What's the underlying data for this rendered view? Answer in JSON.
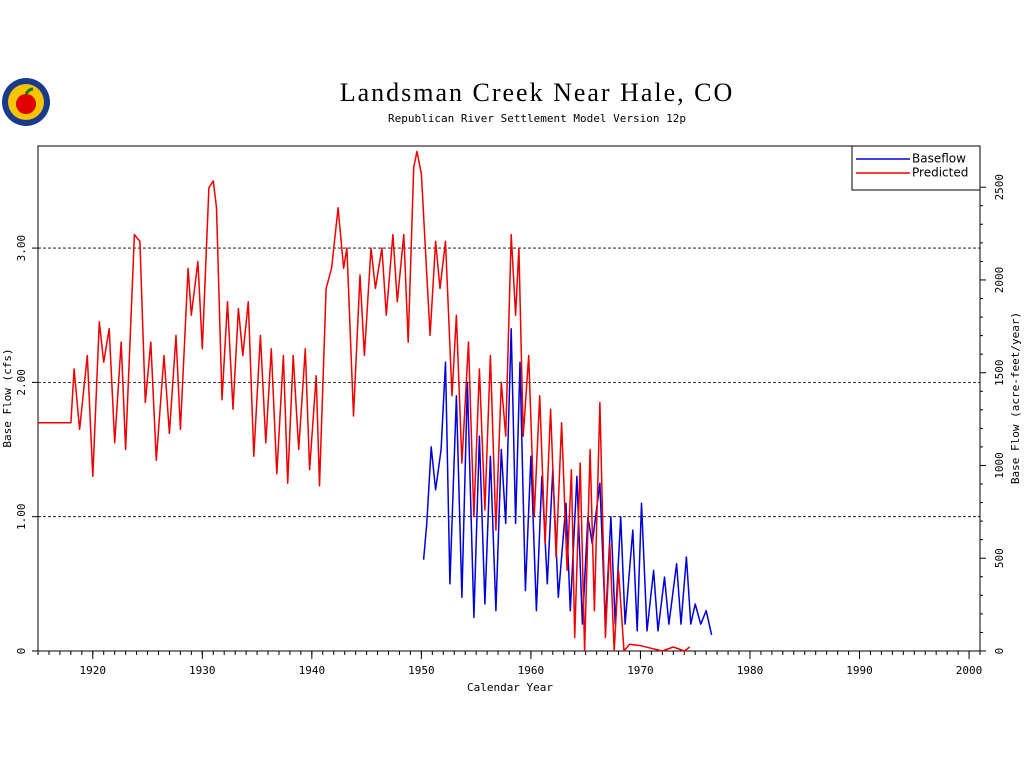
{
  "chart_data": {
    "type": "line",
    "title": "Landsman Creek Near Hale, CO",
    "subtitle": "Republican River Settlement Model Version 12p",
    "x_label": "Calendar Year",
    "y_label": "Base Flow (cfs)",
    "y2_label": "Base Flow (acre-feet/year)",
    "xlim": [
      1915,
      2001
    ],
    "xticks": [
      1920,
      1930,
      1940,
      1950,
      1960,
      1970,
      1980,
      1990,
      2000
    ],
    "ylim": [
      0,
      3.76
    ],
    "yticks": [
      0,
      {
        "value": 1,
        "label": "1.00"
      },
      {
        "value": 2,
        "label": "2.00"
      },
      {
        "value": 3,
        "label": "3.00"
      }
    ],
    "y2lim": [
      0,
      2722
    ],
    "y2ticks": [
      0,
      500,
      1000,
      1500,
      2000,
      2500
    ],
    "grid": true,
    "legend": "upper right",
    "series": [
      {
        "name": "Baseflow",
        "color": "#0000dd",
        "x": [
          1950.2,
          1950.5,
          1950.9,
          1951.3,
          1951.8,
          1952.2,
          1952.6,
          1953.2,
          1953.7,
          1954.2,
          1954.8,
          1955.3,
          1955.8,
          1956.3,
          1956.8,
          1957.3,
          1957.7,
          1958.2,
          1958.6,
          1959.0,
          1959.5,
          1960.0,
          1960.5,
          1961.0,
          1961.5,
          1962.0,
          1962.5,
          1963.2,
          1963.6,
          1964.2,
          1964.7,
          1965.2,
          1965.6,
          1966.3,
          1966.8,
          1967.3,
          1967.7,
          1968.2,
          1968.6,
          1969.3,
          1969.7,
          1970.1,
          1970.6,
          1971.2,
          1971.6,
          1972.2,
          1972.6,
          1973.3,
          1973.7,
          1974.2,
          1974.6,
          1975,
          1975.5,
          1976,
          1976.5
        ],
        "values": [
          0.68,
          0.95,
          1.52,
          1.2,
          1.5,
          2.15,
          0.5,
          1.9,
          0.4,
          2.0,
          0.25,
          1.6,
          0.35,
          1.45,
          0.3,
          1.5,
          0.95,
          2.4,
          0.95,
          2.15,
          0.45,
          1.45,
          0.3,
          1.3,
          0.5,
          1.35,
          0.4,
          1.1,
          0.3,
          1.3,
          0.2,
          1.0,
          0.8,
          1.25,
          0.2,
          1.0,
          0.2,
          1.0,
          0.2,
          0.9,
          0.15,
          1.1,
          0.15,
          0.6,
          0.15,
          0.55,
          0.2,
          0.65,
          0.2,
          0.7,
          0.2,
          0.35,
          0.2,
          0.3,
          0.12
        ]
      },
      {
        "name": "Predicted",
        "color": "#ee0000",
        "x": [
          1915,
          1918,
          1918.3,
          1918.8,
          1919.5,
          1920,
          1920.6,
          1921,
          1921.5,
          1922,
          1922.6,
          1923,
          1923.8,
          1924.3,
          1924.8,
          1925.3,
          1925.8,
          1926.5,
          1927,
          1927.6,
          1928,
          1928.7,
          1929,
          1929.6,
          1930,
          1930.6,
          1931,
          1931.3,
          1931.8,
          1932.3,
          1932.8,
          1933.3,
          1933.7,
          1934.2,
          1934.7,
          1935.3,
          1935.8,
          1936.3,
          1936.8,
          1937.4,
          1937.8,
          1938.3,
          1938.8,
          1939.4,
          1939.8,
          1940.4,
          1940.7,
          1941.3,
          1941.8,
          1942.4,
          1942.9,
          1943.2,
          1943.8,
          1944.4,
          1944.8,
          1945.4,
          1945.8,
          1946.4,
          1946.8,
          1947.4,
          1947.8,
          1948.4,
          1948.8,
          1949.3,
          1949.6,
          1950,
          1950.5,
          1950.8,
          1951.3,
          1951.7,
          1952.2,
          1952.8,
          1953.2,
          1953.7,
          1954.3,
          1954.8,
          1955.3,
          1955.8,
          1956.3,
          1956.8,
          1957.3,
          1957.7,
          1958.2,
          1958.6,
          1958.9,
          1959.3,
          1959.8,
          1960.3,
          1960.8,
          1961.3,
          1961.8,
          1962.3,
          1962.8,
          1963.3,
          1963.7,
          1964.0,
          1964.5,
          1964.9,
          1965.4,
          1965.8,
          1966.3,
          1966.8,
          1967.2,
          1967.6,
          1968.0,
          1968.5,
          1969,
          1970,
          1971,
          1972,
          1973,
          1974,
          1974.5
        ],
        "values": [
          1.7,
          1.7,
          2.1,
          1.65,
          2.2,
          1.3,
          2.45,
          2.15,
          2.4,
          1.55,
          2.3,
          1.5,
          3.1,
          3.05,
          1.85,
          2.3,
          1.42,
          2.2,
          1.62,
          2.35,
          1.65,
          2.85,
          2.5,
          2.9,
          2.25,
          3.45,
          3.5,
          3.3,
          1.87,
          2.6,
          1.8,
          2.55,
          2.2,
          2.6,
          1.45,
          2.35,
          1.55,
          2.25,
          1.32,
          2.2,
          1.25,
          2.2,
          1.5,
          2.25,
          1.35,
          2.05,
          1.23,
          2.7,
          2.85,
          3.3,
          2.85,
          3.0,
          1.75,
          2.8,
          2.2,
          3.0,
          2.7,
          3.0,
          2.5,
          3.1,
          2.6,
          3.1,
          2.3,
          3.6,
          3.72,
          3.55,
          2.8,
          2.35,
          3.05,
          2.7,
          3.05,
          1.9,
          2.5,
          1.4,
          2.3,
          1.0,
          2.1,
          1.05,
          2.2,
          0.9,
          2.0,
          1.6,
          3.1,
          2.5,
          3.0,
          1.6,
          2.2,
          1.0,
          1.9,
          0.8,
          1.8,
          0.7,
          1.7,
          0.6,
          1.35,
          0.1,
          1.4,
          0.0,
          1.5,
          0.3,
          1.85,
          0.1,
          0.8,
          0.0,
          0.6,
          0.0,
          0.05,
          0.04,
          0.02,
          0.0,
          0.03,
          0.0,
          0.03
        ]
      }
    ]
  }
}
